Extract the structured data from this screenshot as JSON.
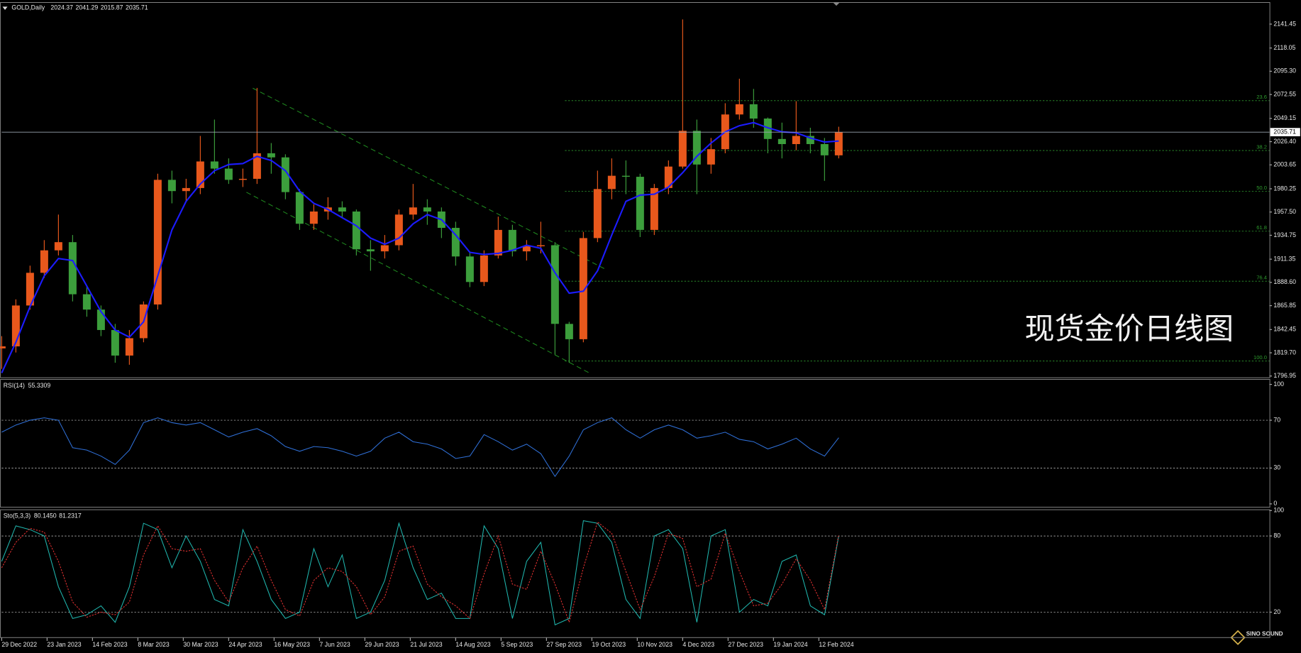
{
  "chart_data": [
    {
      "type": "candlestick",
      "title": "GOLD,Daily",
      "header_values": [
        2024.37,
        2041.29,
        2015.87,
        2035.71
      ],
      "open": [
        1824,
        1826,
        1866,
        1898,
        1920,
        1928,
        1877,
        1862,
        1842,
        1817,
        1834,
        1867,
        1989,
        1978,
        1981,
        2007,
        2000,
        1989,
        1990,
        2015,
        2011,
        1977,
        1946,
        1958,
        1962,
        1958,
        1921,
        1919,
        1925,
        1955,
        1962,
        1958,
        1942,
        1914,
        1889,
        1915,
        1940,
        1919,
        1924,
        1925,
        1848,
        1833,
        1932,
        1980,
        1993,
        1992,
        1940,
        1981,
        2002,
        2037,
        2004,
        2019,
        2053,
        2063,
        2049,
        2029,
        2024,
        2032,
        2024,
        2013
      ],
      "high": [
        1836,
        1872,
        1905,
        1930,
        1955,
        1935,
        1885,
        1866,
        1848,
        1842,
        1870,
        1995,
        1998,
        1990,
        2032,
        2048,
        2010,
        2000,
        2079,
        2025,
        2014,
        1980,
        1965,
        1972,
        1968,
        1960,
        1930,
        1935,
        1960,
        1985,
        1970,
        1962,
        1948,
        1918,
        1920,
        1953,
        1945,
        1930,
        1948,
        1928,
        1850,
        1938,
        1998,
        2010,
        2008,
        1995,
        1985,
        2008,
        2146,
        2048,
        2030,
        2064,
        2088,
        2078,
        2050,
        2045,
        2066,
        2040,
        2030,
        2041
      ],
      "low": [
        1804,
        1820,
        1862,
        1893,
        1915,
        1870,
        1855,
        1836,
        1810,
        1808,
        1830,
        1862,
        1966,
        1968,
        1975,
        1995,
        1985,
        1982,
        1985,
        1995,
        1970,
        1940,
        1940,
        1950,
        1952,
        1915,
        1900,
        1912,
        1920,
        1950,
        1945,
        1932,
        1905,
        1884,
        1885,
        1912,
        1914,
        1910,
        1917,
        1818,
        1810,
        1830,
        1928,
        1970,
        1975,
        1933,
        1935,
        1975,
        2000,
        1975,
        1995,
        2015,
        2048,
        2040,
        2015,
        2010,
        2018,
        2015,
        1988,
        2010
      ],
      "close": [
        1826,
        1866,
        1898,
        1920,
        1928,
        1877,
        1862,
        1842,
        1817,
        1834,
        1867,
        1989,
        1978,
        1981,
        2007,
        2000,
        1989,
        1990,
        2015,
        2011,
        1977,
        1946,
        1958,
        1962,
        1958,
        1921,
        1919,
        1925,
        1955,
        1962,
        1958,
        1942,
        1914,
        1889,
        1915,
        1940,
        1919,
        1924,
        1925,
        1848,
        1833,
        1932,
        1980,
        1993,
        1992,
        1940,
        1981,
        2002,
        2037,
        2004,
        2019,
        2053,
        2063,
        2049,
        2029,
        2024,
        2032,
        2024,
        2013,
        2035.71
      ],
      "up_color": "#e8581c",
      "down_color": "#3c9e3c",
      "ma": {
        "color": "#1c1cff",
        "values": [
          1800,
          1830,
          1865,
          1895,
          1912,
          1910,
          1885,
          1860,
          1842,
          1835,
          1850,
          1895,
          1940,
          1968,
          1985,
          1998,
          2004,
          2005,
          2012,
          2008,
          1998,
          1978,
          1966,
          1960,
          1952,
          1944,
          1932,
          1926,
          1932,
          1946,
          1955,
          1950,
          1935,
          1918,
          1916,
          1917,
          1920,
          1925,
          1922,
          1898,
          1878,
          1880,
          1900,
          1935,
          1968,
          1974,
          1975,
          1982,
          1996,
          2012,
          2025,
          2036,
          2042,
          2045,
          2040,
          2036,
          2035,
          2030,
          2026,
          2027
        ]
      },
      "xlim": [
        0,
        89.36
      ],
      "ylim": [
        1795.3,
        2161.8
      ],
      "yticks": [
        2141.45,
        2118.05,
        {
          "value": 2095.3,
          "label": "2095.30"
        },
        2072.55,
        2049.15,
        {
          "value": 2026.4,
          "label": "2026.40"
        },
        2003.65,
        1980.25,
        {
          "value": 1957.5,
          "label": "1957.50"
        },
        1934.75,
        1911.35,
        {
          "value": 1888.6,
          "label": "1888.60"
        },
        1865.85,
        1842.45,
        {
          "value": 1819.7,
          "label": "1819.70"
        },
        1796.95
      ],
      "xticks": [
        {
          "value": 0,
          "label": "29 Dec 2022"
        },
        {
          "value": 3.2,
          "label": "23 Jan 2023"
        },
        {
          "value": 6.4,
          "label": "14 Feb 2023"
        },
        {
          "value": 9.6,
          "label": "8 Mar 2023"
        },
        {
          "value": 12.8,
          "label": "30 Mar 2023"
        },
        {
          "value": 16,
          "label": "24 Apr 2023"
        },
        {
          "value": 19.2,
          "label": "16 May 2023"
        },
        {
          "value": 22.4,
          "label": "7 Jun 2023"
        },
        {
          "value": 25.6,
          "label": "29 Jun 2023"
        },
        {
          "value": 28.8,
          "label": "21 Jul 2023"
        },
        {
          "value": 32,
          "label": "14 Aug 2023"
        },
        {
          "value": 35.2,
          "label": "5 Sep 2023"
        },
        {
          "value": 38.4,
          "label": "27 Sep 2023"
        },
        {
          "value": 41.6,
          "label": "19 Oct 2023"
        },
        {
          "value": 44.8,
          "label": "10 Nov 2023"
        },
        {
          "value": 48,
          "label": "4 Dec 2023"
        },
        {
          "value": 51.2,
          "label": "27 Dec 2023"
        },
        {
          "value": 54.4,
          "label": "19 Jan 2024"
        },
        {
          "value": 57.6,
          "label": "12 Feb 2024"
        }
      ],
      "current_price": 2035.71,
      "fib_start": 39.7,
      "fib_color": "#2e9a2e",
      "fib_levels": [
        {
          "value": 2066.5,
          "label": "23.6"
        },
        {
          "value": 2017.7,
          "label": "38.2"
        },
        {
          "value": 1977.8,
          "label": "50.0"
        },
        {
          "value": 1938.7,
          "label": "61.8"
        },
        {
          "value": 1889.8,
          "label": "76.4"
        },
        {
          "value": 1811.6,
          "label": "100.0"
        }
      ],
      "channel_color": "#1f8a1f",
      "channel": [
        {
          "x": [
            17.7,
            42.6
          ],
          "y": [
            2078.7,
            1901.2
          ]
        },
        {
          "x": [
            17.25,
            41.5
          ],
          "y": [
            1976.9,
            1799.4
          ]
        }
      ],
      "annotation": "现货金价日线图",
      "logo": "SINO SOUND"
    },
    {
      "type": "line",
      "title": "RSI(14)",
      "title_values": [
        55.3309
      ],
      "series": [
        {
          "color": "#2f6fd6",
          "style": "solid",
          "values": [
            60,
            66,
            70,
            72,
            70,
            47,
            45,
            40,
            33,
            45,
            68,
            72,
            68,
            66,
            68,
            62,
            56,
            60,
            63,
            57,
            48,
            44,
            48,
            47,
            44,
            40,
            44,
            55,
            60,
            52,
            50,
            46,
            38,
            40,
            58,
            52,
            45,
            50,
            42,
            23,
            40,
            62,
            68,
            72,
            62,
            55,
            62,
            66,
            62,
            55,
            57,
            60,
            54,
            52,
            46,
            50,
            55,
            46,
            40,
            55.3309
          ]
        }
      ],
      "ylim": [
        -2.8,
        103.5
      ],
      "yticks": [
        100,
        70,
        30,
        0
      ],
      "levels": [
        70,
        30
      ]
    },
    {
      "type": "line",
      "title": "Sto(5,3,3)",
      "title_values": [
        {
          "value": 80.145,
          "label": "80.1450"
        },
        81.2317
      ],
      "series": [
        {
          "color": "#1fb5ad",
          "style": "solid",
          "values": [
            60,
            88,
            85,
            80,
            40,
            15,
            18,
            25,
            12,
            40,
            90,
            85,
            55,
            80,
            60,
            30,
            25,
            85,
            60,
            30,
            15,
            20,
            70,
            40,
            65,
            15,
            20,
            45,
            90,
            55,
            30,
            35,
            15,
            15,
            88,
            70,
            15,
            60,
            75,
            10,
            15,
            92,
            90,
            75,
            30,
            15,
            80,
            85,
            70,
            12,
            80,
            85,
            20,
            30,
            25,
            60,
            65,
            25,
            18,
            80.145
          ]
        },
        {
          "color": "#e03030",
          "style": "dashed",
          "values": [
            55,
            75,
            86,
            83,
            60,
            28,
            16,
            20,
            18,
            28,
            65,
            88,
            70,
            68,
            70,
            45,
            28,
            55,
            72,
            45,
            22,
            17,
            45,
            55,
            52,
            40,
            18,
            32,
            68,
            72,
            42,
            32,
            25,
            15,
            50,
            80,
            42,
            38,
            68,
            42,
            12,
            55,
            91,
            82,
            52,
            22,
            48,
            82,
            78,
            40,
            46,
            82,
            52,
            25,
            27,
            42,
            62,
            45,
            22,
            81.2317
          ]
        }
      ],
      "ylim": [
        0,
        100
      ],
      "yticks": [
        100,
        80,
        20
      ],
      "levels": [
        80,
        20
      ]
    }
  ]
}
